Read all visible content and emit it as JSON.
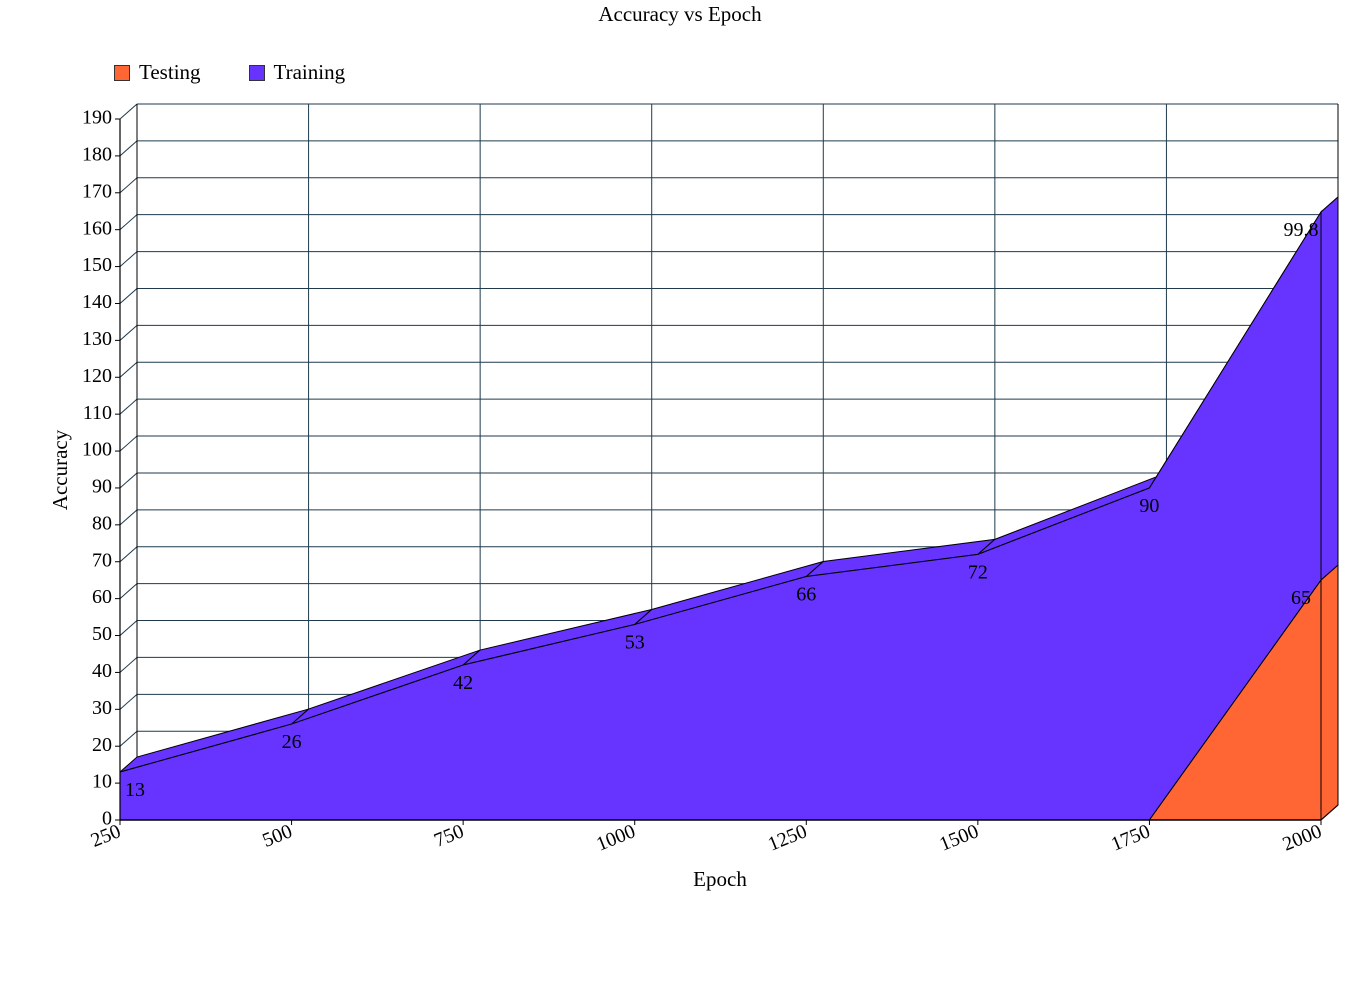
{
  "chart_data": {
    "type": "area",
    "title": "Accuracy vs Epoch",
    "xlabel": "Epoch",
    "ylabel": "Accuracy",
    "x": [
      250,
      500,
      750,
      1000,
      1250,
      1500,
      1750,
      2000
    ],
    "x_tick_labels": [
      "250",
      "500",
      "750",
      "1000",
      "1250",
      "1500",
      "1750",
      "2000"
    ],
    "ylim": [
      0,
      190
    ],
    "y_ticks": [
      0,
      10,
      20,
      30,
      40,
      50,
      60,
      70,
      80,
      90,
      100,
      110,
      120,
      130,
      140,
      150,
      160,
      170,
      180,
      190
    ],
    "stacked": true,
    "three_d": true,
    "grid": true,
    "legend_position": "top-left",
    "series": [
      {
        "name": "Testing",
        "color": "#ff6633",
        "values": [
          0,
          0,
          0,
          0,
          0,
          0,
          0,
          65
        ],
        "labels": [
          "",
          "",
          "",
          "",
          "",
          "",
          "",
          "65"
        ]
      },
      {
        "name": "Training",
        "color": "#6633ff",
        "values": [
          13,
          26,
          42,
          53,
          66,
          72,
          90,
          99.8
        ],
        "labels": [
          "13",
          "26",
          "42",
          "53",
          "66",
          "72",
          "90",
          "99.8"
        ]
      }
    ]
  }
}
